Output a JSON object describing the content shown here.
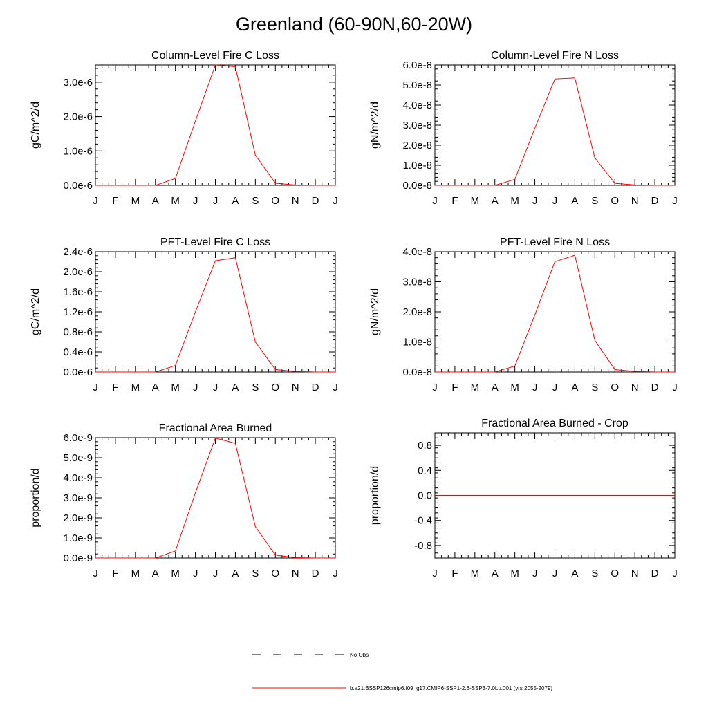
{
  "title": "Greenland (60-90N,60-20W)",
  "months": [
    "J",
    "F",
    "M",
    "A",
    "M",
    "J",
    "J",
    "A",
    "S",
    "O",
    "N",
    "D",
    "J"
  ],
  "legend": [
    {
      "label": "No Obs",
      "style": "dashed",
      "color": "#000000"
    },
    {
      "label": "b.e21.BSSP126cmip6.f09_g17.CMIP6-SSP1-2.6-SSP3-7.0Lu.001 (yrs 2055-2079)",
      "style": "solid",
      "color": "#ff0000"
    }
  ],
  "chart_data": [
    {
      "type": "line",
      "title": "Column-Level Fire C Loss",
      "ylabel": "gC/m^2/d",
      "ylim": [
        0,
        3.5e-06
      ],
      "yticks": [
        0,
        1e-06,
        2e-06,
        3e-06
      ],
      "yticklabels": [
        "0.0e-6",
        "1.0e-6",
        "2.0e-6",
        "3.0e-6"
      ],
      "series": [
        {
          "values": [
            0,
            0,
            0,
            0,
            2e-07,
            1.87e-06,
            3.5e-06,
            3.45e-06,
            8.8e-07,
            6e-08,
            1e-08,
            0,
            0
          ],
          "color": "#ff0000"
        }
      ]
    },
    {
      "type": "line",
      "title": "Column-Level Fire N Loss",
      "ylabel": "gN/m^2/d",
      "ylim": [
        0,
        6e-08
      ],
      "yticks": [
        0,
        1e-08,
        2e-08,
        3e-08,
        4e-08,
        5e-08,
        6e-08
      ],
      "yticklabels": [
        "0.0e-8",
        "1.0e-8",
        "2.0e-8",
        "3.0e-8",
        "4.0e-8",
        "5.0e-8",
        "6.0e-8"
      ],
      "series": [
        {
          "values": [
            0,
            0,
            0,
            0,
            3e-09,
            2.85e-08,
            5.3e-08,
            5.35e-08,
            1.37e-08,
            1e-09,
            2e-10,
            0,
            0
          ],
          "color": "#ff0000"
        }
      ]
    },
    {
      "type": "line",
      "title": "PFT-Level Fire C Loss",
      "ylabel": "gC/m^2/d",
      "ylim": [
        0,
        2.4e-06
      ],
      "yticks": [
        0,
        4e-07,
        8e-07,
        1.2e-06,
        1.6e-06,
        2e-06,
        2.4e-06
      ],
      "yticklabels": [
        "0.0e-6",
        "0.4e-6",
        "0.8e-6",
        "1.2e-6",
        "1.6e-6",
        "2.0e-6",
        "2.4e-6"
      ],
      "series": [
        {
          "values": [
            0,
            0,
            0,
            0,
            1.3e-07,
            1.2e-06,
            2.22e-06,
            2.28e-06,
            6e-07,
            5e-08,
            1e-08,
            0,
            0
          ],
          "color": "#ff0000"
        }
      ]
    },
    {
      "type": "line",
      "title": "PFT-Level Fire N Loss",
      "ylabel": "gN/m^2/d",
      "ylim": [
        0,
        4e-08
      ],
      "yticks": [
        0,
        1e-08,
        2e-08,
        3e-08,
        4e-08
      ],
      "yticklabels": [
        "0.0e-8",
        "1.0e-8",
        "2.0e-8",
        "3.0e-8",
        "4.0e-8"
      ],
      "series": [
        {
          "values": [
            0,
            0,
            0,
            0,
            2e-09,
            1.9e-08,
            3.67e-08,
            3.88e-08,
            1.05e-08,
            8e-10,
            2e-10,
            0,
            0
          ],
          "color": "#ff0000"
        }
      ]
    },
    {
      "type": "line",
      "title": "Fractional Area Burned",
      "ylabel": "proportion/d",
      "ylim": [
        0,
        6e-09
      ],
      "yticks": [
        0,
        1e-09,
        2e-09,
        3e-09,
        4e-09,
        5e-09,
        6e-09
      ],
      "yticklabels": [
        "0.0e-9",
        "1.0e-9",
        "2.0e-9",
        "3.0e-9",
        "4.0e-9",
        "5.0e-9",
        "6.0e-9"
      ],
      "series": [
        {
          "values": [
            0,
            0,
            0,
            0,
            3.5e-10,
            3.25e-09,
            5.98e-09,
            5.72e-09,
            1.57e-09,
            1.4e-10,
            2e-11,
            0,
            0
          ],
          "color": "#ff0000"
        }
      ]
    },
    {
      "type": "line",
      "title": "Fractional Area Burned - Crop",
      "ylabel": "proportion/d",
      "ylim": [
        -1.0,
        1.0
      ],
      "yticks": [
        -0.8,
        -0.4,
        0,
        0.4,
        0.8
      ],
      "yticklabels": [
        "-0.8",
        "-0.4",
        "0.0",
        "0.4",
        "0.8"
      ],
      "series": [
        {
          "values": [
            0,
            0,
            0,
            0,
            0,
            0,
            0,
            0,
            0,
            0,
            0,
            0,
            0
          ],
          "color": "#ff0000"
        }
      ]
    }
  ]
}
